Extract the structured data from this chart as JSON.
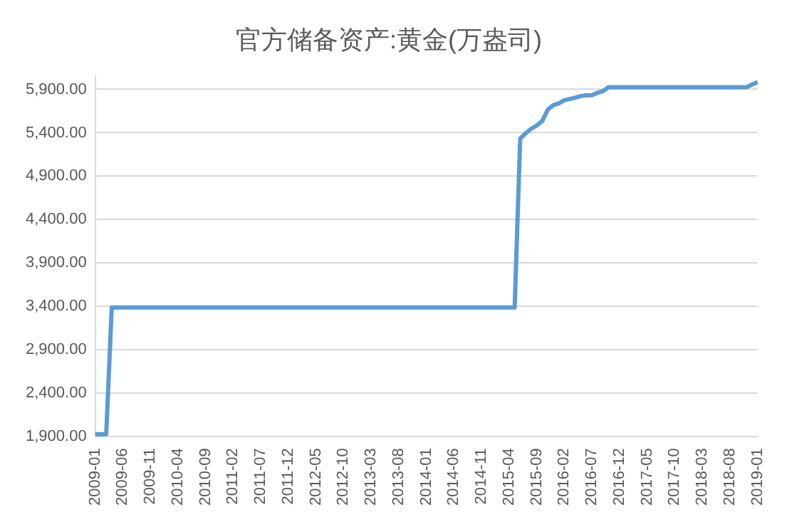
{
  "chart_data": {
    "type": "line",
    "title": "官方储备资产:黄金(万盎司)",
    "categories": [
      "2009-01",
      null,
      null,
      null,
      null,
      "2009-06",
      null,
      null,
      null,
      null,
      "2009-11",
      null,
      null,
      null,
      null,
      "2010-04",
      null,
      null,
      null,
      null,
      "2010-09",
      null,
      null,
      null,
      null,
      "2011-02",
      null,
      null,
      null,
      null,
      "2011-07",
      null,
      null,
      null,
      null,
      "2011-12",
      null,
      null,
      null,
      null,
      "2012-05",
      null,
      null,
      null,
      null,
      "2012-10",
      null,
      null,
      null,
      null,
      "2013-03",
      null,
      null,
      null,
      null,
      "2013-08",
      null,
      null,
      null,
      null,
      "2014-01",
      null,
      null,
      null,
      null,
      "2014-06",
      null,
      null,
      null,
      null,
      "2014-11",
      null,
      null,
      null,
      null,
      "2015-04",
      null,
      null,
      null,
      null,
      "2015-09",
      null,
      null,
      null,
      null,
      "2016-02",
      null,
      null,
      null,
      null,
      "2016-07",
      null,
      null,
      null,
      null,
      "2016-12",
      null,
      null,
      null,
      null,
      "2017-05",
      null,
      null,
      null,
      null,
      "2017-10",
      null,
      null,
      null,
      null,
      "2018-03",
      null,
      null,
      null,
      null,
      "2018-08",
      null,
      null,
      null,
      null,
      "2019-01"
    ],
    "series": [
      {
        "color": "#5b9bd5",
        "values": [
          1929,
          1929,
          1929,
          3389,
          3389,
          3389,
          3389,
          3389,
          3389,
          3389,
          3389,
          3389,
          3389,
          3389,
          3389,
          3389,
          3389,
          3389,
          3389,
          3389,
          3389,
          3389,
          3389,
          3389,
          3389,
          3389,
          3389,
          3389,
          3389,
          3389,
          3389,
          3389,
          3389,
          3389,
          3389,
          3389,
          3389,
          3389,
          3389,
          3389,
          3389,
          3389,
          3389,
          3389,
          3389,
          3389,
          3389,
          3389,
          3389,
          3389,
          3389,
          3389,
          3389,
          3389,
          3389,
          3389,
          3389,
          3389,
          3389,
          3389,
          3389,
          3389,
          3389,
          3389,
          3389,
          3389,
          3389,
          3389,
          3389,
          3389,
          3389,
          3389,
          3389,
          3389,
          3389,
          3389,
          3389,
          5332,
          5395,
          5447,
          5484,
          5536,
          5666,
          5719,
          5738,
          5776,
          5790,
          5804,
          5823,
          5833,
          5833,
          5861,
          5879,
          5924,
          5924,
          5924,
          5924,
          5924,
          5924,
          5924,
          5924,
          5924,
          5924,
          5924,
          5924,
          5924,
          5924,
          5924,
          5924,
          5924,
          5924,
          5924,
          5924,
          5924,
          5924,
          5924,
          5924,
          5924,
          5924,
          5956,
          5984
        ]
      }
    ],
    "ylim": [
      1900,
      6050
    ],
    "yticks": [
      {
        "value": 1900,
        "label": "1,900.00"
      },
      {
        "value": 2400,
        "label": "2,400.00"
      },
      {
        "value": 2900,
        "label": "2,900.00"
      },
      {
        "value": 3400,
        "label": "3,400.00"
      },
      {
        "value": 3900,
        "label": "3,900.00"
      },
      {
        "value": 4400,
        "label": "4,400.00"
      },
      {
        "value": 4900,
        "label": "4,900.00"
      },
      {
        "value": 5400,
        "label": "5,400.00"
      },
      {
        "value": 5900,
        "label": "5,900.00"
      }
    ],
    "grid": "y",
    "legend": false,
    "marker": "none",
    "line_style": "solid"
  }
}
